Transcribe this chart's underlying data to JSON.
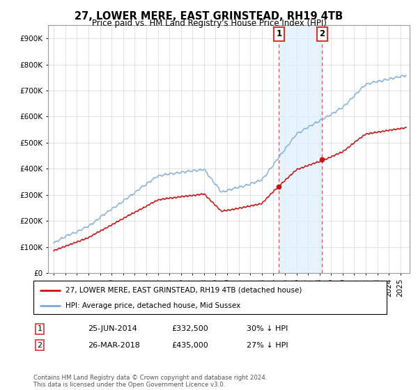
{
  "title": "27, LOWER MERE, EAST GRINSTEAD, RH19 4TB",
  "subtitle": "Price paid vs. HM Land Registry's House Price Index (HPI)",
  "hpi_label": "HPI: Average price, detached house, Mid Sussex",
  "price_label": "27, LOWER MERE, EAST GRINSTEAD, RH19 4TB (detached house)",
  "footnote": "Contains HM Land Registry data © Crown copyright and database right 2024.\nThis data is licensed under the Open Government Licence v3.0.",
  "transaction1": {
    "date": "25-JUN-2014",
    "price": "£332,500",
    "pct": "30% ↓ HPI",
    "label": "1"
  },
  "transaction2": {
    "date": "26-MAR-2018",
    "price": "£435,000",
    "pct": "27% ↓ HPI",
    "label": "2"
  },
  "t1_x": 2014.48,
  "t2_x": 2018.23,
  "t1_price": 332500,
  "t2_price": 435000,
  "ylim": [
    0,
    950000
  ],
  "yticks": [
    0,
    100000,
    200000,
    300000,
    400000,
    500000,
    600000,
    700000,
    800000,
    900000
  ],
  "hpi_color": "#7aaadd",
  "price_color": "#cc1111",
  "vline_color": "#dd3333",
  "shade_color": "#ddeeff",
  "background_color": "#ffffff",
  "grid_color": "#dddddd",
  "xlim_left": 1994.5,
  "xlim_right": 2025.8
}
